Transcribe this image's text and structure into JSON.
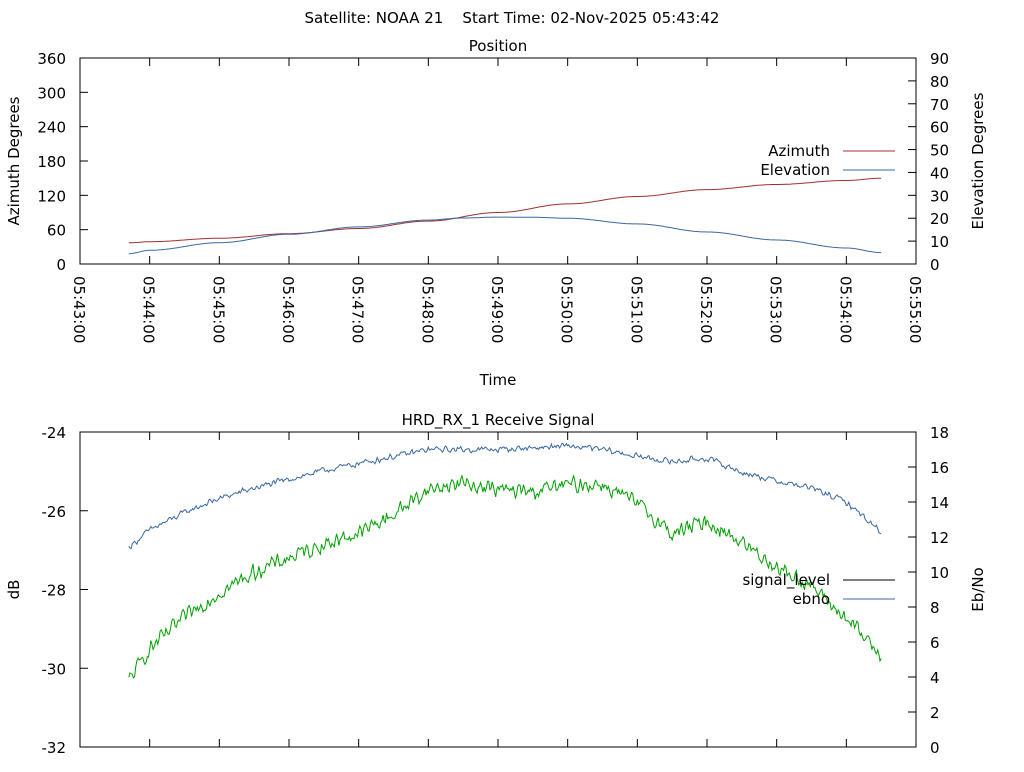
{
  "header": {
    "title": "Satellite: NOAA 21    Start Time: 02-Nov-2025 05:43:42"
  },
  "chart_data": [
    {
      "type": "line",
      "title": "Position",
      "xlabel": "Time",
      "ylabel": "Azimuth Degrees",
      "y2label": "Elevation Degrees",
      "x_ticks": [
        "05:43:00",
        "05:44:00",
        "05:45:00",
        "05:46:00",
        "05:47:00",
        "05:48:00",
        "05:49:00",
        "05:50:00",
        "05:51:00",
        "05:52:00",
        "05:53:00",
        "05:54:00",
        "05:55:00"
      ],
      "xlim": [
        "05:43:00",
        "05:55:00"
      ],
      "ylim": [
        0,
        360
      ],
      "y_ticks": [
        0,
        60,
        120,
        180,
        240,
        300,
        360
      ],
      "y2lim": [
        0,
        90
      ],
      "y2_ticks": [
        0,
        10,
        20,
        30,
        40,
        50,
        60,
        70,
        80,
        90
      ],
      "legend_position": "right",
      "grid": false,
      "series": [
        {
          "name": "Azimuth",
          "axis": "left",
          "color": "#a0302c",
          "x": [
            "05:43:42",
            "05:44:00",
            "05:45:00",
            "05:46:00",
            "05:47:00",
            "05:48:00",
            "05:49:00",
            "05:50:00",
            "05:51:00",
            "05:52:00",
            "05:53:00",
            "05:54:00",
            "05:54:30"
          ],
          "values": [
            37,
            39,
            45,
            53,
            62,
            75,
            90,
            105,
            118,
            130,
            139,
            146,
            150
          ]
        },
        {
          "name": "Elevation",
          "axis": "right",
          "color": "#3a68a0",
          "x": [
            "05:43:42",
            "05:44:00",
            "05:45:00",
            "05:46:00",
            "05:47:00",
            "05:48:00",
            "05:48:30",
            "05:49:00",
            "05:49:30",
            "05:50:00",
            "05:51:00",
            "05:52:00",
            "05:53:00",
            "05:54:00",
            "05:54:30"
          ],
          "values": [
            4.5,
            6,
            9.3,
            13,
            16.2,
            19.2,
            20.1,
            20.5,
            20.4,
            20,
            17.5,
            14,
            10.5,
            7,
            5
          ]
        }
      ]
    },
    {
      "type": "line",
      "title": "HRD_RX_1 Receive Signal",
      "xlabel": "",
      "ylabel": "dB",
      "y2label": "Eb/No",
      "xlim": [
        "05:43:00",
        "05:55:00"
      ],
      "ylim": [
        -32,
        -24
      ],
      "y_ticks": [
        -32,
        -30,
        -28,
        -26,
        -24
      ],
      "y2lim": [
        0,
        18
      ],
      "y2_ticks": [
        0,
        2,
        4,
        6,
        8,
        10,
        12,
        14,
        16,
        18
      ],
      "legend_position": "right",
      "grid": false,
      "series": [
        {
          "name": "signal_level",
          "axis": "left",
          "color": "#000000",
          "x": [],
          "values": []
        },
        {
          "name": "ebno",
          "axis": "right",
          "color": "#3a68a0",
          "x": [
            "05:43:42",
            "05:44:00",
            "05:44:30",
            "05:45:00",
            "05:45:30",
            "05:46:00",
            "05:46:30",
            "05:47:00",
            "05:47:30",
            "05:48:00",
            "05:48:30",
            "05:49:00",
            "05:49:30",
            "05:50:00",
            "05:50:30",
            "05:51:00",
            "05:51:30",
            "05:52:00",
            "05:52:30",
            "05:53:00",
            "05:53:30",
            "05:54:00",
            "05:54:30"
          ],
          "values": [
            11.4,
            12.4,
            13.4,
            14.2,
            14.8,
            15.3,
            15.8,
            16.2,
            16.6,
            17.0,
            17.0,
            17.0,
            17.1,
            17.2,
            17.0,
            16.6,
            16.3,
            16.5,
            15.7,
            15.2,
            14.8,
            14.0,
            12.3
          ]
        },
        {
          "name": "",
          "axis": "right",
          "color": "#00a000",
          "x": [
            "05:43:42",
            "05:44:00",
            "05:44:30",
            "05:45:00",
            "05:45:30",
            "05:46:00",
            "05:46:30",
            "05:47:00",
            "05:47:30",
            "05:48:00",
            "05:48:30",
            "05:49:00",
            "05:49:30",
            "05:50:00",
            "05:50:30",
            "05:51:00",
            "05:51:30",
            "05:52:00",
            "05:52:30",
            "05:53:00",
            "05:53:30",
            "05:54:00",
            "05:54:30"
          ],
          "values": [
            3.8,
            5.6,
            7.4,
            8.8,
            10.0,
            10.8,
            11.6,
            12.2,
            13.3,
            14.7,
            15.1,
            14.7,
            14.6,
            15.0,
            15.0,
            13.9,
            12.2,
            12.9,
            11.7,
            10.3,
            9.2,
            7.3,
            5.3
          ]
        }
      ]
    }
  ]
}
